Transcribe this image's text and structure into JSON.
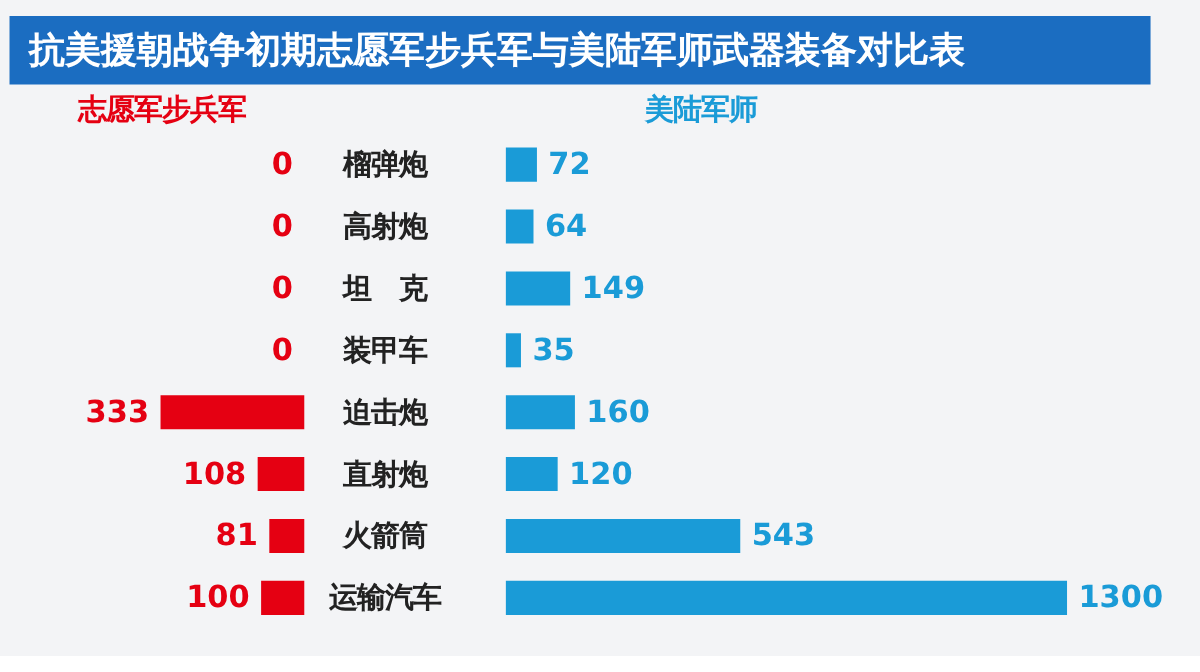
{
  "chart_data": [
    {
      "type": "bar",
      "orientation": "horizontal",
      "title": "抗美援朝战争初期志愿军步兵军与美陆军师武器装备对比表",
      "categories": [
        "榴弹炮",
        "高射炮",
        "坦　克",
        "装甲车",
        "迫击炮",
        "直射炮",
        "火箭筒",
        "运输汽车"
      ],
      "series": [
        {
          "name": "志愿军步兵军",
          "color": "#e50012",
          "values": [
            0,
            0,
            0,
            0,
            333,
            108,
            81,
            100
          ]
        }
      ],
      "data_labels": true,
      "grid": false,
      "legend": false
    },
    {
      "type": "bar",
      "orientation": "horizontal",
      "categories": [
        null,
        null,
        null,
        null,
        null,
        null,
        null,
        null
      ],
      "series": [
        {
          "name": "美陆军师",
          "color": "#1a9bd7",
          "values": [
            72,
            64,
            149,
            35,
            160,
            120,
            543,
            1300
          ]
        }
      ],
      "data_labels": true,
      "grid": false,
      "legend": false
    }
  ]
}
